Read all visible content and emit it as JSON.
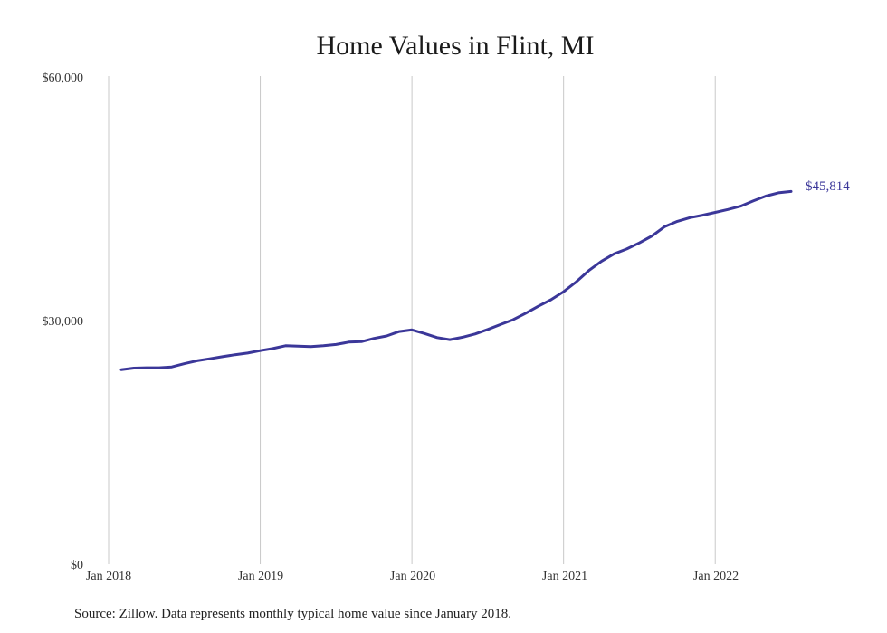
{
  "chart_data": {
    "type": "line",
    "title": "Home Values in Flint, MI",
    "xlabel": "",
    "ylabel": "",
    "y_ticks": [
      "$60,000",
      "$30,000",
      "$0"
    ],
    "y_tick_values": [
      60000,
      30000,
      0
    ],
    "ylim": [
      0,
      60000
    ],
    "x_ticks": [
      "Jan 2018",
      "Jan 2019",
      "Jan 2020",
      "Jan 2021",
      "Jan 2022"
    ],
    "x_tick_dates": [
      "2018-01",
      "2019-01",
      "2020-01",
      "2021-01",
      "2022-01"
    ],
    "xlim": [
      "2018-01",
      "2022-07"
    ],
    "grid": "vertical lines at x ticks",
    "line_color": "#3b3799",
    "end_label": "$45,814",
    "series": [
      {
        "name": "",
        "x": [
          "2018-02",
          "2018-03",
          "2018-04",
          "2018-05",
          "2018-06",
          "2018-07",
          "2018-08",
          "2018-09",
          "2018-10",
          "2018-11",
          "2018-12",
          "2019-01",
          "2019-02",
          "2019-03",
          "2019-04",
          "2019-05",
          "2019-06",
          "2019-07",
          "2019-08",
          "2019-09",
          "2019-10",
          "2019-11",
          "2019-12",
          "2020-01",
          "2020-02",
          "2020-03",
          "2020-04",
          "2020-05",
          "2020-06",
          "2020-07",
          "2020-08",
          "2020-09",
          "2020-10",
          "2020-11",
          "2020-12",
          "2021-01",
          "2021-02",
          "2021-03",
          "2021-04",
          "2021-05",
          "2021-06",
          "2021-07",
          "2021-08",
          "2021-09",
          "2021-10",
          "2021-11",
          "2021-12",
          "2022-01",
          "2022-02",
          "2022-03",
          "2022-04",
          "2022-05",
          "2022-06",
          "2022-07"
        ],
        "values": [
          23900,
          24100,
          24150,
          24150,
          24250,
          24650,
          25000,
          25250,
          25500,
          25750,
          25950,
          26250,
          26500,
          26850,
          26800,
          26750,
          26850,
          27000,
          27300,
          27350,
          27750,
          28050,
          28600,
          28800,
          28350,
          27850,
          27600,
          27900,
          28300,
          28850,
          29450,
          30050,
          30850,
          31700,
          32500,
          33500,
          34700,
          36100,
          37250,
          38150,
          38750,
          39500,
          40350,
          41500,
          42150,
          42600,
          42900,
          43250,
          43600,
          44000,
          44650,
          45250,
          45650,
          45814
        ]
      }
    ]
  },
  "footer": {
    "source": "Source: Zillow. Data represents monthly typical home value since January 2018."
  }
}
